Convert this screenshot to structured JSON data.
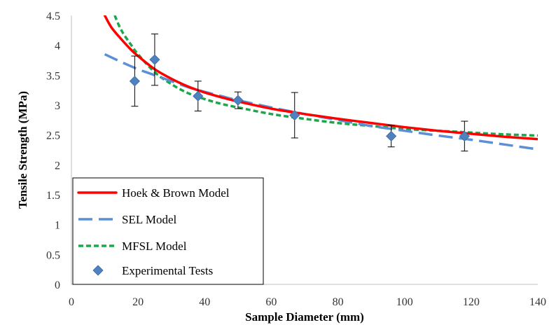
{
  "chart_data": {
    "type": "line",
    "xlabel": "Sample Diameter (mm)",
    "ylabel": "Tensile Strength (MPa)",
    "xlim": [
      0,
      140
    ],
    "ylim": [
      0,
      4.5
    ],
    "x_ticks": [
      0,
      20,
      40,
      60,
      80,
      100,
      120,
      140
    ],
    "y_ticks": [
      0,
      0.5,
      1,
      1.5,
      2,
      2.5,
      3,
      3.5,
      4,
      4.5
    ],
    "x_tick_labels": [
      "0",
      "20",
      "40",
      "60",
      "80",
      "100",
      "120",
      "140"
    ],
    "y_tick_labels": [
      "0",
      "0.5",
      "1",
      "1.5",
      "2",
      "2.5",
      "3",
      "3.5",
      "4",
      "4.5"
    ],
    "grid": false,
    "legend_position": "bottom-left",
    "series": [
      {
        "name": "Hoek & Brown Model",
        "style": "solid",
        "color": "#ff0000",
        "x": [
          10,
          12,
          15,
          18,
          20,
          25,
          30,
          35,
          40,
          45,
          50,
          60,
          70,
          80,
          90,
          100,
          110,
          120,
          130,
          140
        ],
        "y": [
          4.5,
          4.3,
          4.1,
          3.92,
          3.82,
          3.6,
          3.44,
          3.31,
          3.21,
          3.13,
          3.06,
          2.94,
          2.85,
          2.77,
          2.7,
          2.63,
          2.57,
          2.52,
          2.47,
          2.43
        ]
      },
      {
        "name": "SEL Model",
        "style": "dashed",
        "color": "#5b8fd6",
        "x": [
          10,
          15,
          20,
          25,
          30,
          35,
          40,
          45,
          50,
          60,
          70,
          80,
          90,
          100,
          110,
          120,
          130,
          140
        ],
        "y": [
          3.85,
          3.72,
          3.6,
          3.5,
          3.4,
          3.3,
          3.22,
          3.15,
          3.08,
          2.96,
          2.85,
          2.75,
          2.65,
          2.57,
          2.49,
          2.42,
          2.34,
          2.26
        ]
      },
      {
        "name": "MFSL Model",
        "style": "dotted",
        "color": "#1aa84a",
        "x": [
          13,
          15,
          18,
          20,
          25,
          30,
          35,
          40,
          45,
          50,
          60,
          70,
          80,
          90,
          100,
          110,
          120,
          130,
          140
        ],
        "y": [
          4.5,
          4.25,
          4.0,
          3.85,
          3.55,
          3.35,
          3.2,
          3.1,
          3.02,
          2.96,
          2.85,
          2.77,
          2.7,
          2.65,
          2.6,
          2.57,
          2.54,
          2.51,
          2.49
        ]
      }
    ],
    "experimental": {
      "name": "Experimental Tests",
      "color": "#4f81bd",
      "x": [
        19,
        25,
        38,
        50,
        67,
        96,
        118
      ],
      "y": [
        3.4,
        3.76,
        3.15,
        3.08,
        2.83,
        2.48,
        2.48
      ],
      "err": [
        0.42,
        0.43,
        0.25,
        0.14,
        0.38,
        0.18,
        0.25
      ]
    }
  }
}
